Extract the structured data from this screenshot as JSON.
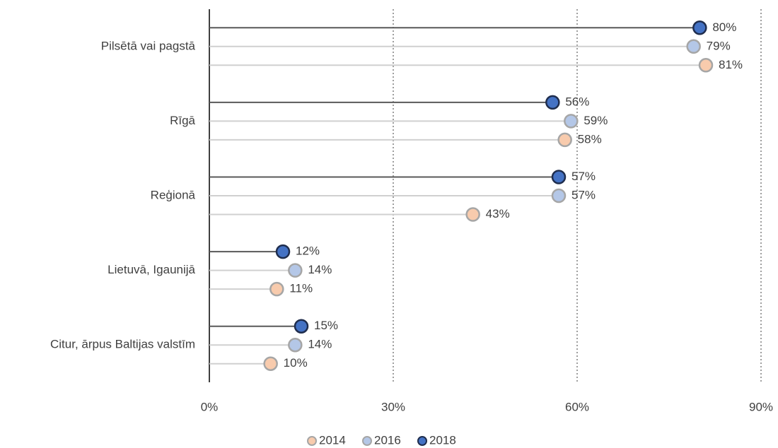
{
  "chart_data": {
    "type": "lollipop",
    "categories": [
      "Pilsētā vai pagstā",
      "Rīgā",
      "Reģionā",
      "Lietuvā, Igaunijā",
      "Citur, ārpus Baltijas valstīm"
    ],
    "series": [
      {
        "name": "2014",
        "color": "#f8cbad",
        "values": [
          81,
          58,
          43,
          11,
          10
        ],
        "value_labels": [
          "81%",
          "58%",
          "43%",
          "11%",
          "10%"
        ]
      },
      {
        "name": "2016",
        "color": "#b4c7e7",
        "values": [
          79,
          59,
          57,
          14,
          14
        ],
        "value_labels": [
          "79%",
          "59%",
          "57%",
          "14%",
          "14%"
        ]
      },
      {
        "name": "2018",
        "color": "#4472c4",
        "values": [
          80,
          56,
          57,
          12,
          15
        ],
        "value_labels": [
          "80%",
          "56%",
          "57%",
          "12%",
          "15%"
        ]
      }
    ],
    "xlim": [
      0,
      90
    ],
    "xticks": [
      {
        "value": 0,
        "label": "0%"
      },
      {
        "value": 30,
        "label": "30%"
      },
      {
        "value": 60,
        "label": "60%"
      },
      {
        "value": 90,
        "label": "90%"
      }
    ],
    "grid": true,
    "legend": "bottom"
  }
}
